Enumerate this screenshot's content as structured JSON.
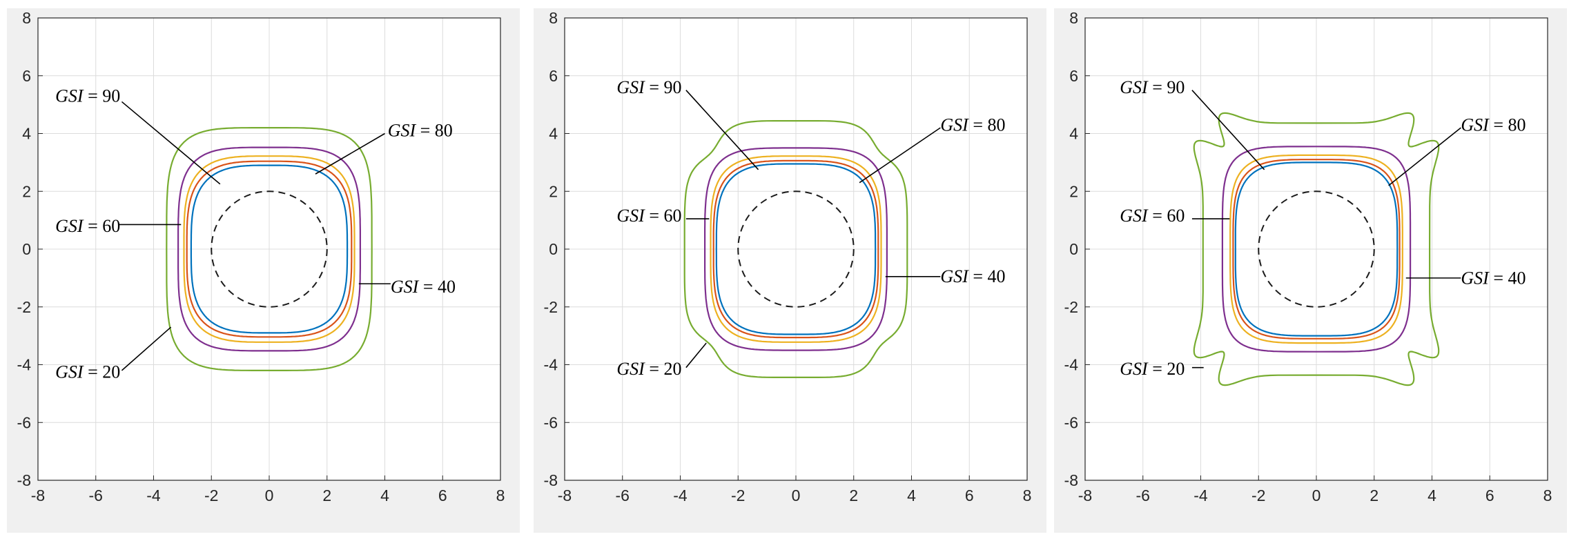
{
  "figure": {
    "panel_count": 3,
    "colors": {
      "background": "#f0f0f0",
      "axes_face": "#ffffff",
      "grid": "#dcdcdc",
      "axis": "#262626",
      "circle": "#1a1a1a",
      "GSI=20": "#77ac30",
      "GSI=40": "#7e2f8e",
      "GSI=60": "#edb120",
      "GSI=80": "#d95319",
      "GSI=90": "#0072bd"
    }
  },
  "chart_data": [
    {
      "type": "line",
      "xlim": [
        -8,
        8
      ],
      "ylim": [
        -8,
        8
      ],
      "xticks": [
        -8,
        -6,
        -4,
        -2,
        0,
        2,
        4,
        6,
        8
      ],
      "yticks": [
        -8,
        -6,
        -4,
        -2,
        0,
        2,
        4,
        6,
        8
      ],
      "tick_labels": [
        "-8",
        "-6",
        "-4",
        "-2",
        "0",
        "2",
        "4",
        "6",
        "8"
      ],
      "grid": true,
      "excavation_circle": {
        "center": [
          0,
          0
        ],
        "radius": 2,
        "style": "dashed"
      },
      "series": [
        {
          "name": "GSI = 20",
          "color": "#77ac30",
          "shape": {
            "a": 3.55,
            "b": 4.2,
            "n": 4.5,
            "m4": 0,
            "m8": 0
          }
        },
        {
          "name": "GSI = 40",
          "color": "#7e2f8e",
          "shape": {
            "a": 3.15,
            "b": 3.52,
            "n": 4.0,
            "m4": 0,
            "m8": 0
          }
        },
        {
          "name": "GSI = 60",
          "color": "#edb120",
          "shape": {
            "a": 2.95,
            "b": 3.22,
            "n": 3.6,
            "m4": 0,
            "m8": 0
          }
        },
        {
          "name": "GSI = 80",
          "color": "#d95319",
          "shape": {
            "a": 2.85,
            "b": 3.04,
            "n": 3.4,
            "m4": 0,
            "m8": 0
          }
        },
        {
          "name": "GSI = 90",
          "color": "#0072bd",
          "shape": {
            "a": 2.7,
            "b": 2.9,
            "n": 3.3,
            "m4": 0,
            "m8": 0
          }
        }
      ],
      "annotations": [
        {
          "var": "GSI",
          "value": "90",
          "text_xy": [
            -7.4,
            5.1
          ],
          "line": [
            [
              -5.1,
              5.1
            ],
            [
              -1.7,
              2.25
            ]
          ]
        },
        {
          "var": "GSI",
          "value": "80",
          "text_xy": [
            4.1,
            3.9
          ],
          "line": [
            [
              4.0,
              4.0
            ],
            [
              1.6,
              2.6
            ]
          ]
        },
        {
          "var": "GSI",
          "value": "60",
          "text_xy": [
            -7.4,
            0.6
          ],
          "line": [
            [
              -5.2,
              0.85
            ],
            [
              -3.05,
              0.85
            ]
          ]
        },
        {
          "var": "GSI",
          "value": "40",
          "text_xy": [
            4.2,
            -1.5
          ],
          "line": [
            [
              3.1,
              -1.2
            ],
            [
              4.2,
              -1.2
            ]
          ]
        },
        {
          "var": "GSI",
          "value": "20",
          "text_xy": [
            -7.4,
            -4.45
          ],
          "line": [
            [
              -5.1,
              -4.2
            ],
            [
              -3.4,
              -2.7
            ]
          ]
        }
      ]
    },
    {
      "type": "line",
      "xlim": [
        -8,
        8
      ],
      "ylim": [
        -8,
        8
      ],
      "xticks": [
        -8,
        -6,
        -4,
        -2,
        0,
        2,
        4,
        6,
        8
      ],
      "yticks": [
        -8,
        -6,
        -4,
        -2,
        0,
        2,
        4,
        6,
        8
      ],
      "tick_labels": [
        "-8",
        "-6",
        "-4",
        "-2",
        "0",
        "2",
        "4",
        "6",
        "8"
      ],
      "grid": true,
      "excavation_circle": {
        "center": [
          0,
          0
        ],
        "radius": 2,
        "style": "dashed"
      },
      "series": [
        {
          "name": "GSI = 20",
          "color": "#77ac30",
          "shape": {
            "a": 3.6,
            "b": 4.15,
            "n": 5.0,
            "m4": 0.07,
            "m8": 0
          }
        },
        {
          "name": "GSI = 40",
          "color": "#7e2f8e",
          "shape": {
            "a": 3.15,
            "b": 3.5,
            "n": 4.2,
            "m4": 0,
            "m8": 0
          }
        },
        {
          "name": "GSI = 60",
          "color": "#edb120",
          "shape": {
            "a": 2.95,
            "b": 3.22,
            "n": 3.8,
            "m4": 0,
            "m8": 0
          }
        },
        {
          "name": "GSI = 80",
          "color": "#d95319",
          "shape": {
            "a": 2.85,
            "b": 3.06,
            "n": 3.6,
            "m4": 0,
            "m8": 0
          }
        },
        {
          "name": "GSI = 90",
          "color": "#0072bd",
          "shape": {
            "a": 2.75,
            "b": 2.95,
            "n": 3.5,
            "m4": 0,
            "m8": 0
          }
        }
      ],
      "annotations": [
        {
          "var": "GSI",
          "value": "90",
          "text_xy": [
            -6.2,
            5.4
          ],
          "line": [
            [
              -3.8,
              5.5
            ],
            [
              -1.3,
              2.75
            ]
          ]
        },
        {
          "var": "GSI",
          "value": "80",
          "text_xy": [
            5.0,
            4.1
          ],
          "line": [
            [
              5.0,
              4.2
            ],
            [
              2.2,
              2.3
            ]
          ]
        },
        {
          "var": "GSI",
          "value": "60",
          "text_xy": [
            -6.2,
            0.95
          ],
          "line": [
            [
              -3.8,
              1.05
            ],
            [
              -3.0,
              1.05
            ]
          ]
        },
        {
          "var": "GSI",
          "value": "40",
          "text_xy": [
            5.0,
            -1.15
          ],
          "line": [
            [
              3.1,
              -0.95
            ],
            [
              5.0,
              -0.95
            ]
          ]
        },
        {
          "var": "GSI",
          "value": "20",
          "text_xy": [
            -6.2,
            -4.35
          ],
          "line": [
            [
              -3.8,
              -4.1
            ],
            [
              -3.1,
              -3.25
            ]
          ]
        }
      ]
    },
    {
      "type": "line",
      "xlim": [
        -8,
        8
      ],
      "ylim": [
        -8,
        8
      ],
      "xticks": [
        -8,
        -6,
        -4,
        -2,
        0,
        2,
        4,
        6,
        8
      ],
      "yticks": [
        -8,
        -6,
        -4,
        -2,
        0,
        2,
        4,
        6,
        8
      ],
      "tick_labels": [
        "-8",
        "-6",
        "-4",
        "-2",
        "0",
        "2",
        "4",
        "6",
        "8"
      ],
      "grid": true,
      "excavation_circle": {
        "center": [
          0,
          0
        ],
        "radius": 2,
        "style": "dashed"
      },
      "series": [
        {
          "name": "GSI = 20",
          "color": "#77ac30",
          "shape": {
            "a": 4.0,
            "b": 4.45,
            "n": 7.5,
            "m4": 0.05,
            "m8": -0.07
          }
        },
        {
          "name": "GSI = 40",
          "color": "#7e2f8e",
          "shape": {
            "a": 3.25,
            "b": 3.55,
            "n": 5.0,
            "m4": 0,
            "m8": 0
          }
        },
        {
          "name": "GSI = 60",
          "color": "#edb120",
          "shape": {
            "a": 2.98,
            "b": 3.25,
            "n": 4.3,
            "m4": 0,
            "m8": 0
          }
        },
        {
          "name": "GSI = 80",
          "color": "#d95319",
          "shape": {
            "a": 2.88,
            "b": 3.1,
            "n": 4.0,
            "m4": 0,
            "m8": 0
          }
        },
        {
          "name": "GSI = 90",
          "color": "#0072bd",
          "shape": {
            "a": 2.8,
            "b": 3.0,
            "n": 3.8,
            "m4": 0,
            "m8": 0
          }
        }
      ],
      "annotations": [
        {
          "var": "GSI",
          "value": "90",
          "text_xy": [
            -6.8,
            5.4
          ],
          "line": [
            [
              -4.3,
              5.5
            ],
            [
              -1.8,
              2.75
            ]
          ]
        },
        {
          "var": "GSI",
          "value": "80",
          "text_xy": [
            5.0,
            4.1
          ],
          "line": [
            [
              5.0,
              4.2
            ],
            [
              2.5,
              2.2
            ]
          ]
        },
        {
          "var": "GSI",
          "value": "60",
          "text_xy": [
            -6.8,
            0.95
          ],
          "line": [
            [
              -4.3,
              1.05
            ],
            [
              -3.0,
              1.05
            ]
          ]
        },
        {
          "var": "GSI",
          "value": "40",
          "text_xy": [
            5.0,
            -1.2
          ],
          "line": [
            [
              3.1,
              -1.0
            ],
            [
              5.0,
              -1.0
            ]
          ]
        },
        {
          "var": "GSI",
          "value": "20",
          "text_xy": [
            -6.8,
            -4.35
          ],
          "line": [
            [
              -4.3,
              -4.1
            ],
            [
              -3.9,
              -4.1
            ]
          ]
        }
      ]
    }
  ]
}
